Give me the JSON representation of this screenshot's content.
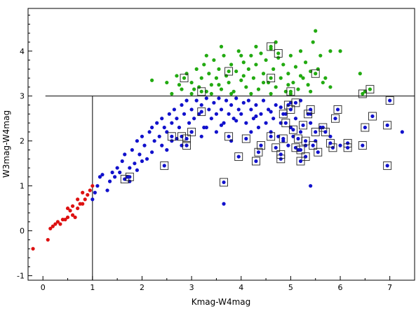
{
  "chart_data": {
    "type": "scatter",
    "title": "",
    "xlabel": "Kmag-W4mag",
    "ylabel": "W3mag-W4mag",
    "xlim": [
      -0.3,
      7.5
    ],
    "ylim": [
      -1.1,
      4.95
    ],
    "grid": false,
    "legend": "none",
    "x_ticks": [
      "0",
      "1",
      "2",
      "3",
      "4",
      "5",
      "6",
      "7"
    ],
    "y_ticks": [
      "-1",
      "0",
      "1",
      "2",
      "3",
      "4"
    ],
    "reference_lines": {
      "horizontal_y": 3.0,
      "horizontal_x_start": 0.05,
      "vertical_x": 1.0
    },
    "series": [
      {
        "color": "#dd1111",
        "points": [
          [
            -0.2,
            -0.4
          ],
          [
            0.1,
            -0.2
          ],
          [
            0.15,
            0.05
          ],
          [
            0.2,
            0.1
          ],
          [
            0.25,
            0.15
          ],
          [
            0.3,
            0.2
          ],
          [
            0.35,
            0.15
          ],
          [
            0.4,
            0.25
          ],
          [
            0.45,
            0.25
          ],
          [
            0.5,
            0.3
          ],
          [
            0.55,
            0.45
          ],
          [
            0.6,
            0.55
          ],
          [
            0.65,
            0.3
          ],
          [
            0.7,
            0.5
          ],
          [
            0.75,
            0.6
          ],
          [
            0.8,
            0.85
          ],
          [
            0.85,
            0.7
          ],
          [
            0.9,
            0.8
          ],
          [
            0.95,
            0.9
          ],
          [
            1.0,
            1.0
          ],
          [
            0.6,
            0.35
          ],
          [
            0.7,
            0.7
          ],
          [
            0.8,
            0.6
          ],
          [
            0.5,
            0.5
          ]
        ]
      },
      {
        "color": "#1111cc",
        "points": [
          [
            1.0,
            0.7
          ],
          [
            1.05,
            0.85
          ],
          [
            1.1,
            1.0
          ],
          [
            1.15,
            1.2
          ],
          [
            1.2,
            1.25
          ],
          [
            1.3,
            0.9
          ],
          [
            1.35,
            1.1
          ],
          [
            1.4,
            1.3
          ],
          [
            1.45,
            1.2
          ],
          [
            1.5,
            1.4
          ],
          [
            1.55,
            1.3
          ],
          [
            1.6,
            1.55
          ],
          [
            1.65,
            1.7
          ],
          [
            1.7,
            1.2
          ],
          [
            1.75,
            1.4
          ],
          [
            1.8,
            1.8
          ],
          [
            1.85,
            1.5
          ],
          [
            1.9,
            2.0
          ],
          [
            1.95,
            1.7
          ],
          [
            2.0,
            2.1
          ],
          [
            2.05,
            1.9
          ],
          [
            2.1,
            1.6
          ],
          [
            2.15,
            2.2
          ],
          [
            2.2,
            2.3
          ],
          [
            2.25,
            2.0
          ],
          [
            2.3,
            2.4
          ],
          [
            2.35,
            2.1
          ],
          [
            2.4,
            2.5
          ],
          [
            2.45,
            2.3
          ],
          [
            2.5,
            2.2
          ],
          [
            2.55,
            2.6
          ],
          [
            2.6,
            2.4
          ],
          [
            2.65,
            2.7
          ],
          [
            2.7,
            2.5
          ],
          [
            2.75,
            2.3
          ],
          [
            2.8,
            2.8
          ],
          [
            2.85,
            2.6
          ],
          [
            2.9,
            2.9
          ],
          [
            2.95,
            2.4
          ],
          [
            3.0,
            2.7
          ],
          [
            3.05,
            2.5
          ],
          [
            3.1,
            2.9
          ],
          [
            3.15,
            2.6
          ],
          [
            3.2,
            2.8
          ],
          [
            3.25,
            2.3
          ],
          [
            3.3,
            2.95
          ],
          [
            3.35,
            2.7
          ],
          [
            3.4,
            2.5
          ],
          [
            3.45,
            2.85
          ],
          [
            3.5,
            2.6
          ],
          [
            3.55,
            2.95
          ],
          [
            3.6,
            2.7
          ],
          [
            3.65,
            2.4
          ],
          [
            3.7,
            2.9
          ],
          [
            3.75,
            2.6
          ],
          [
            3.8,
            2.8
          ],
          [
            3.85,
            2.5
          ],
          [
            3.9,
            2.95
          ],
          [
            3.95,
            2.7
          ],
          [
            4.0,
            2.6
          ],
          [
            4.05,
            2.85
          ],
          [
            4.1,
            2.4
          ],
          [
            4.15,
            2.9
          ],
          [
            4.2,
            2.7
          ],
          [
            4.25,
            2.5
          ],
          [
            4.3,
            2.8
          ],
          [
            4.35,
            2.3
          ],
          [
            4.4,
            2.6
          ],
          [
            4.45,
            2.9
          ],
          [
            4.5,
            2.4
          ],
          [
            4.55,
            2.7
          ],
          [
            4.6,
            2.2
          ],
          [
            4.65,
            2.5
          ],
          [
            4.7,
            2.8
          ],
          [
            4.75,
            2.1
          ],
          [
            4.8,
            2.4
          ],
          [
            4.85,
            2.0
          ],
          [
            4.9,
            2.6
          ],
          [
            4.95,
            1.9
          ],
          [
            5.0,
            2.3
          ],
          [
            5.05,
            2.1
          ],
          [
            5.1,
            2.5
          ],
          [
            5.15,
            1.8
          ],
          [
            5.2,
            2.2
          ],
          [
            5.3,
            1.9
          ],
          [
            5.4,
            2.4
          ],
          [
            5.5,
            2.0
          ],
          [
            5.6,
            2.3
          ],
          [
            5.8,
            2.1
          ],
          [
            6.0,
            1.9
          ],
          [
            3.65,
            0.6
          ],
          [
            5.4,
            1.0
          ],
          [
            7.25,
            2.2
          ],
          [
            2.4,
            1.9
          ],
          [
            2.6,
            2.0
          ],
          [
            2.8,
            1.9
          ],
          [
            3.2,
            2.1
          ],
          [
            3.5,
            2.2
          ],
          [
            3.8,
            2.0
          ],
          [
            4.2,
            2.2
          ],
          [
            1.75,
            1.1
          ],
          [
            1.9,
            1.35
          ],
          [
            2.0,
            1.55
          ],
          [
            2.2,
            1.75
          ],
          [
            2.5,
            1.8
          ],
          [
            2.7,
            2.05
          ],
          [
            3.0,
            2.2
          ],
          [
            3.3,
            2.3
          ],
          [
            3.6,
            2.35
          ],
          [
            3.9,
            2.45
          ],
          [
            4.3,
            2.55
          ],
          [
            4.6,
            2.65
          ],
          [
            4.8,
            2.75
          ],
          [
            5.0,
            2.85
          ],
          [
            5.2,
            2.9
          ],
          [
            5.4,
            2.6
          ]
        ]
      },
      {
        "color": "#22aa11",
        "points": [
          [
            2.2,
            3.35
          ],
          [
            2.5,
            3.3
          ],
          [
            2.7,
            3.45
          ],
          [
            2.8,
            3.15
          ],
          [
            2.9,
            3.5
          ],
          [
            3.0,
            3.3
          ],
          [
            3.1,
            3.6
          ],
          [
            3.15,
            3.2
          ],
          [
            3.2,
            3.4
          ],
          [
            3.25,
            3.7
          ],
          [
            3.3,
            3.1
          ],
          [
            3.35,
            3.5
          ],
          [
            3.4,
            3.25
          ],
          [
            3.45,
            3.8
          ],
          [
            3.5,
            3.4
          ],
          [
            3.55,
            3.6
          ],
          [
            3.6,
            3.15
          ],
          [
            3.65,
            3.9
          ],
          [
            3.7,
            3.45
          ],
          [
            3.75,
            3.3
          ],
          [
            3.8,
            3.7
          ],
          [
            3.85,
            3.1
          ],
          [
            3.9,
            3.55
          ],
          [
            3.95,
            4.0
          ],
          [
            4.0,
            3.35
          ],
          [
            4.05,
            3.75
          ],
          [
            4.1,
            3.2
          ],
          [
            4.15,
            3.6
          ],
          [
            4.2,
            3.9
          ],
          [
            4.25,
            3.4
          ],
          [
            4.3,
            3.7
          ],
          [
            4.35,
            3.15
          ],
          [
            4.4,
            3.95
          ],
          [
            4.45,
            3.5
          ],
          [
            4.5,
            3.8
          ],
          [
            4.55,
            3.3
          ],
          [
            4.6,
            4.05
          ],
          [
            4.65,
            3.6
          ],
          [
            4.7,
            3.2
          ],
          [
            4.75,
            3.85
          ],
          [
            4.8,
            3.4
          ],
          [
            4.85,
            3.7
          ],
          [
            4.9,
            3.1
          ],
          [
            4.95,
            3.5
          ],
          [
            5.0,
            3.9
          ],
          [
            5.05,
            3.3
          ],
          [
            5.1,
            3.65
          ],
          [
            5.15,
            3.15
          ],
          [
            5.2,
            3.45
          ],
          [
            5.3,
            3.75
          ],
          [
            5.35,
            3.25
          ],
          [
            5.4,
            3.55
          ],
          [
            5.45,
            4.2
          ],
          [
            5.5,
            4.45
          ],
          [
            5.55,
            3.6
          ],
          [
            5.6,
            3.9
          ],
          [
            5.7,
            3.4
          ],
          [
            5.8,
            3.2
          ],
          [
            6.0,
            4.0
          ],
          [
            6.4,
            3.5
          ],
          [
            6.5,
            3.1
          ],
          [
            3.3,
            3.9
          ],
          [
            3.6,
            4.1
          ],
          [
            4.0,
            3.9
          ],
          [
            4.3,
            4.1
          ],
          [
            4.7,
            4.2
          ],
          [
            5.2,
            4.0
          ],
          [
            5.8,
            4.0
          ],
          [
            2.6,
            3.05
          ],
          [
            3.0,
            3.05
          ],
          [
            3.4,
            3.05
          ],
          [
            3.8,
            3.05
          ],
          [
            4.2,
            3.05
          ],
          [
            4.6,
            3.05
          ],
          [
            5.0,
            3.05
          ],
          [
            5.4,
            3.1
          ],
          [
            2.75,
            3.25
          ],
          [
            3.05,
            3.15
          ],
          [
            3.55,
            3.25
          ],
          [
            4.05,
            3.45
          ],
          [
            4.45,
            3.3
          ],
          [
            4.95,
            3.25
          ],
          [
            5.25,
            3.4
          ],
          [
            5.65,
            3.3
          ]
        ]
      }
    ],
    "boxed_points": [
      [
        2.85,
        3.4
      ],
      [
        3.2,
        3.1
      ],
      [
        3.75,
        3.55
      ],
      [
        4.6,
        4.1
      ],
      [
        4.75,
        3.95
      ],
      [
        4.6,
        3.4
      ],
      [
        5.0,
        3.1
      ],
      [
        5.5,
        3.5
      ],
      [
        6.45,
        3.05
      ],
      [
        6.6,
        3.15
      ],
      [
        1.65,
        1.15
      ],
      [
        1.75,
        1.2
      ],
      [
        2.45,
        1.45
      ],
      [
        2.6,
        2.1
      ],
      [
        2.8,
        2.1
      ],
      [
        2.9,
        1.9
      ],
      [
        2.9,
        2.05
      ],
      [
        3.0,
        2.2
      ],
      [
        3.2,
        2.65
      ],
      [
        3.75,
        2.1
      ],
      [
        3.65,
        1.08
      ],
      [
        3.95,
        1.65
      ],
      [
        4.1,
        2.05
      ],
      [
        4.3,
        1.55
      ],
      [
        4.35,
        1.75
      ],
      [
        4.4,
        1.9
      ],
      [
        4.6,
        2.1
      ],
      [
        4.7,
        1.85
      ],
      [
        4.8,
        1.6
      ],
      [
        4.85,
        2.6
      ],
      [
        4.9,
        2.4
      ],
      [
        4.95,
        2.8
      ],
      [
        5.0,
        2.7
      ],
      [
        5.05,
        2.25
      ],
      [
        5.1,
        1.85
      ],
      [
        5.1,
        2.85
      ],
      [
        5.15,
        2.05
      ],
      [
        5.2,
        1.8
      ],
      [
        5.25,
        2.35
      ],
      [
        5.3,
        1.65
      ],
      [
        5.3,
        2.0
      ],
      [
        5.35,
        2.6
      ],
      [
        5.4,
        2.7
      ],
      [
        5.45,
        1.9
      ],
      [
        5.5,
        2.2
      ],
      [
        5.55,
        1.75
      ],
      [
        5.65,
        2.3
      ],
      [
        5.7,
        2.2
      ],
      [
        5.85,
        1.85
      ],
      [
        5.9,
        2.5
      ],
      [
        5.95,
        2.7
      ],
      [
        6.15,
        1.95
      ],
      [
        6.45,
        1.9
      ],
      [
        6.5,
        2.3
      ],
      [
        6.65,
        2.55
      ],
      [
        6.95,
        2.35
      ],
      [
        6.95,
        1.45
      ],
      [
        7.0,
        2.9
      ],
      [
        4.8,
        1.7
      ],
      [
        4.85,
        2.05
      ],
      [
        5.2,
        1.55
      ],
      [
        5.8,
        1.95
      ],
      [
        6.15,
        1.85
      ]
    ]
  }
}
